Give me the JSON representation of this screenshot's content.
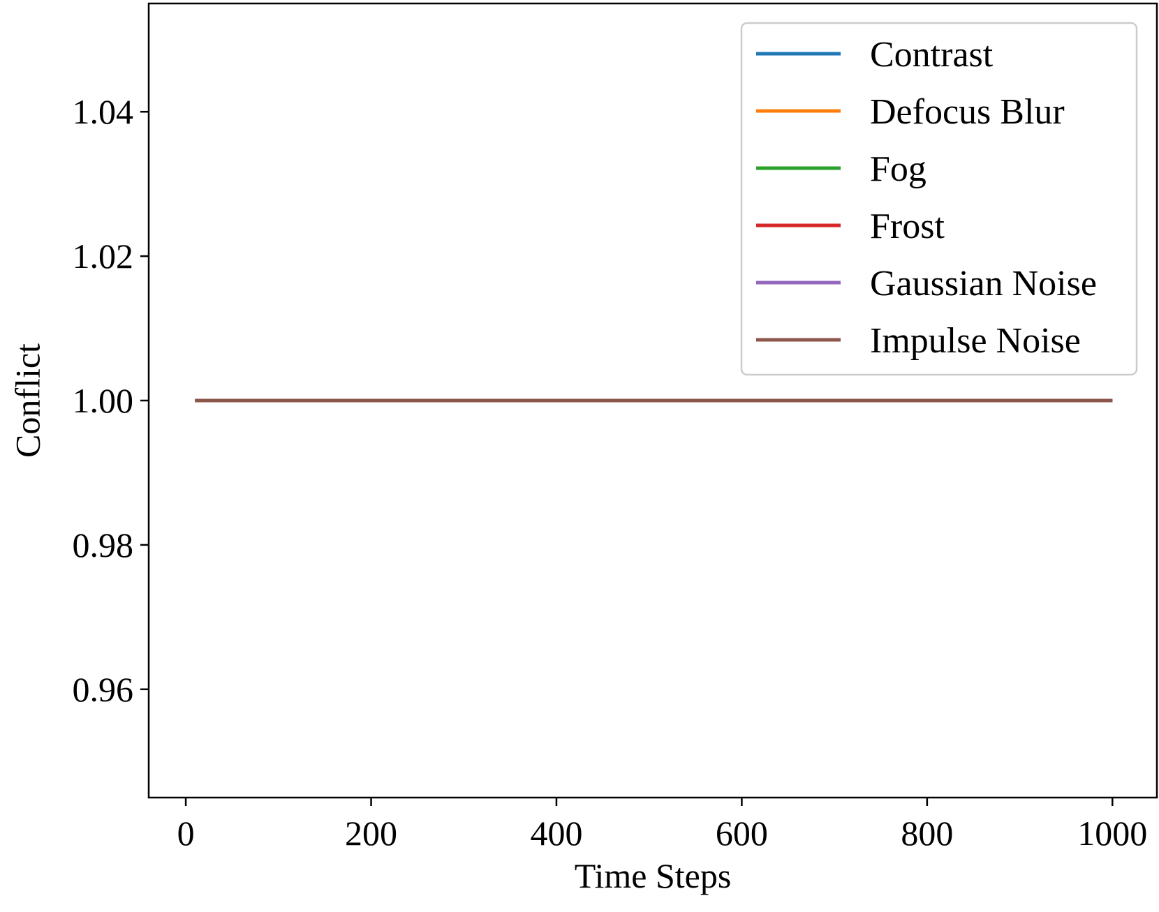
{
  "chart_data": {
    "type": "line",
    "title": "",
    "xlabel": "Time Steps",
    "ylabel": "Conflict",
    "xlim": [
      -40,
      1048
    ],
    "ylim": [
      0.945,
      1.055
    ],
    "xticks": [
      0,
      200,
      400,
      600,
      800,
      1000
    ],
    "xtick_labels": [
      "0",
      "200",
      "400",
      "600",
      "800",
      "1000"
    ],
    "yticks": [
      0.96,
      0.98,
      1.0,
      1.02,
      1.04
    ],
    "ytick_labels": [
      "0.96",
      "0.98",
      "1.00",
      "1.02",
      "1.04"
    ],
    "grid": false,
    "legend_position": "top-right",
    "x": [
      10,
      100,
      200,
      300,
      400,
      500,
      600,
      700,
      800,
      900,
      1000
    ],
    "series": [
      {
        "name": "Contrast",
        "color": "#1f77b4",
        "values": [
          1.0,
          1.0,
          1.0,
          1.0,
          1.0,
          1.0,
          1.0,
          1.0,
          1.0,
          1.0,
          1.0
        ]
      },
      {
        "name": "Defocus Blur",
        "color": "#ff7f0e",
        "values": [
          1.0,
          1.0,
          1.0,
          1.0,
          1.0,
          1.0,
          1.0,
          1.0,
          1.0,
          1.0,
          1.0
        ]
      },
      {
        "name": "Fog",
        "color": "#2ca02c",
        "values": [
          1.0,
          1.0,
          1.0,
          1.0,
          1.0,
          1.0,
          1.0,
          1.0,
          1.0,
          1.0,
          1.0
        ]
      },
      {
        "name": "Frost",
        "color": "#d62728",
        "values": [
          1.0,
          1.0,
          1.0,
          1.0,
          1.0,
          1.0,
          1.0,
          1.0,
          1.0,
          1.0,
          1.0
        ]
      },
      {
        "name": "Gaussian Noise",
        "color": "#9467bd",
        "values": [
          1.0,
          1.0,
          1.0,
          1.0,
          1.0,
          1.0,
          1.0,
          1.0,
          1.0,
          1.0,
          1.0
        ]
      },
      {
        "name": "Impulse Noise",
        "color": "#8c564b",
        "values": [
          1.0,
          1.0,
          1.0,
          1.0,
          1.0,
          1.0,
          1.0,
          1.0,
          1.0,
          1.0,
          1.0
        ]
      }
    ]
  }
}
